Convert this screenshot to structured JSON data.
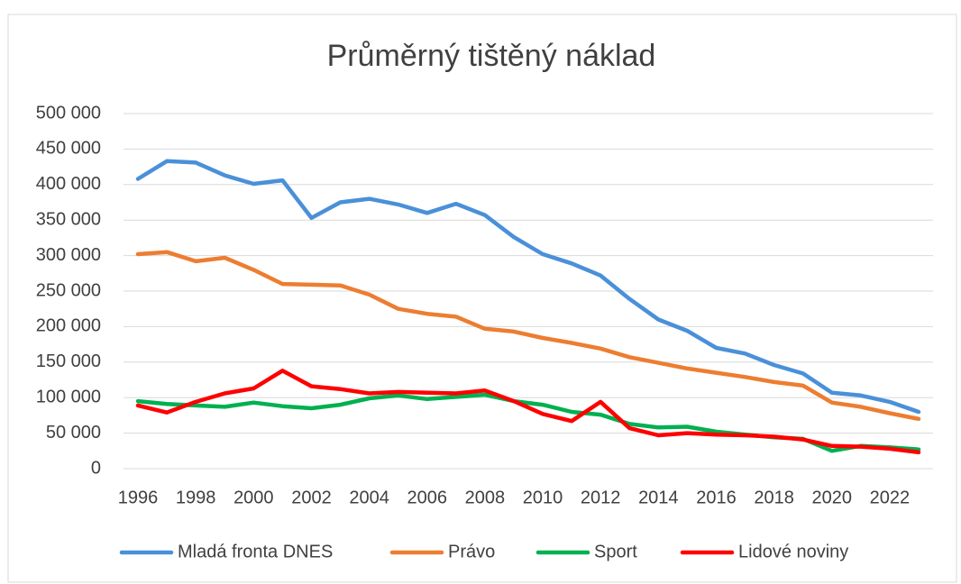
{
  "chart_data": {
    "type": "line",
    "title": "Průměrný tištěný náklad",
    "categories": [
      "1996",
      null,
      "1998",
      null,
      "2000",
      null,
      "2002",
      null,
      "2004",
      null,
      "2006",
      null,
      "2008",
      null,
      "2010",
      null,
      "2012",
      null,
      "2014",
      null,
      "2016",
      null,
      "2018",
      null,
      "2020",
      null,
      "2022",
      null
    ],
    "series": [
      {
        "name": "Mladá fronta DNES",
        "color": "#4a90d9",
        "values": [
          408000,
          433000,
          431000,
          413000,
          401000,
          406000,
          353000,
          375000,
          380000,
          372000,
          360000,
          373000,
          357000,
          326000,
          302000,
          289000,
          272000,
          239000,
          210000,
          194000,
          170000,
          162000,
          146000,
          134000,
          107000,
          103000,
          94000,
          80000
        ]
      },
      {
        "name": "Právo",
        "color": "#ed7d31",
        "values": [
          302000,
          305000,
          292000,
          297000,
          280000,
          260000,
          259000,
          258000,
          245000,
          225000,
          218000,
          214000,
          197000,
          193000,
          184000,
          177000,
          169000,
          157000,
          149000,
          141000,
          135000,
          129000,
          122000,
          117000,
          93000,
          87000,
          78000,
          70000
        ]
      },
      {
        "name": "Sport",
        "color": "#00b050",
        "values": [
          95000,
          91000,
          89000,
          87000,
          93000,
          88000,
          85000,
          90000,
          99000,
          103000,
          98000,
          101000,
          104000,
          95000,
          90000,
          80000,
          76000,
          63000,
          58000,
          59000,
          52000,
          48000,
          44000,
          42000,
          25000,
          32000,
          30000,
          27000
        ]
      },
      {
        "name": "Lidové noviny",
        "color": "#ff0000",
        "values": [
          89000,
          79000,
          94000,
          106000,
          113000,
          138000,
          116000,
          112000,
          106000,
          108000,
          107000,
          106000,
          110000,
          95000,
          77000,
          67000,
          94000,
          57000,
          47000,
          50000,
          48000,
          47000,
          45000,
          41000,
          32000,
          31000,
          28000,
          23000
        ]
      }
    ],
    "ylim": [
      0,
      500000
    ],
    "yticks": [
      0,
      {
        "value": 50000,
        "label": "50 000"
      },
      {
        "value": 100000,
        "label": "100 000"
      },
      {
        "value": 150000,
        "label": "150 000"
      },
      {
        "value": 200000,
        "label": "200 000"
      },
      {
        "value": 250000,
        "label": "250 000"
      },
      {
        "value": 300000,
        "label": "300 000"
      },
      {
        "value": 350000,
        "label": "350 000"
      },
      {
        "value": 400000,
        "label": "400 000"
      },
      {
        "value": 450000,
        "label": "450 000"
      },
      {
        "value": 500000,
        "label": "500 000"
      }
    ],
    "grid": true,
    "legend": "bottom"
  }
}
